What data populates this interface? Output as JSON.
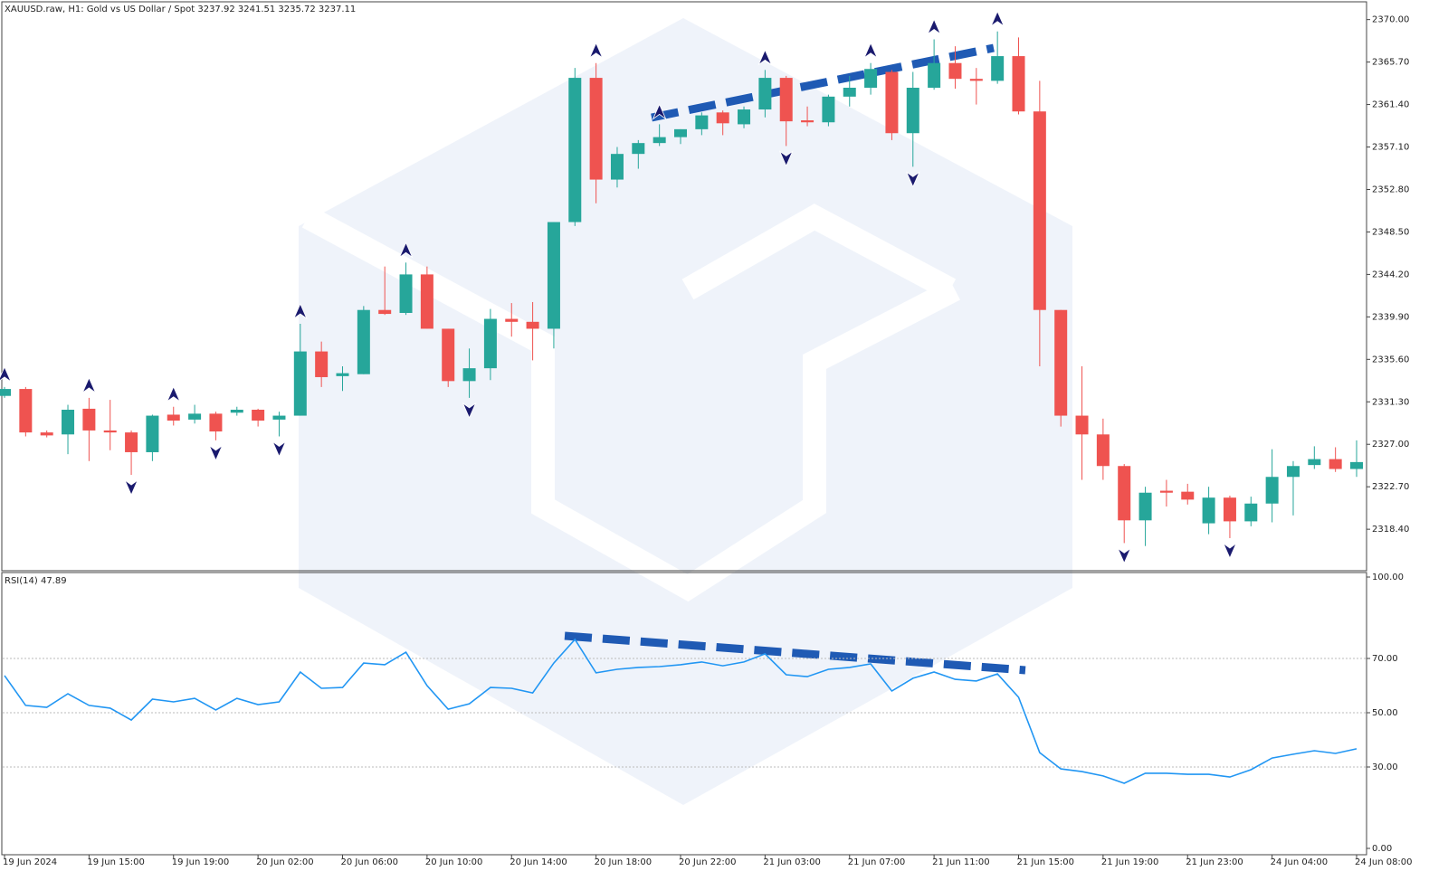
{
  "chart_data": {
    "type": "candlestick",
    "title": "XAUUSD.raw, H1:  Gold vs US Dollar / Spot  3237.92 3241.51 3235.72 3237.11",
    "categories": [
      "19 Jun 2024",
      null,
      null,
      null,
      "19 Jun 15:00",
      null,
      null,
      null,
      "19 Jun 19:00",
      null,
      null,
      null,
      "20 Jun 02:00",
      null,
      null,
      null,
      "20 Jun 06:00",
      null,
      null,
      null,
      "20 Jun 10:00",
      null,
      null,
      null,
      "20 Jun 14:00",
      null,
      null,
      null,
      "20 Jun 18:00",
      null,
      null,
      null,
      "20 Jun 22:00",
      null,
      null,
      null,
      "21 Jun 03:00",
      null,
      null,
      null,
      "21 Jun 07:00",
      null,
      null,
      null,
      "21 Jun 11:00",
      null,
      null,
      null,
      "21 Jun 15:00",
      null,
      null,
      null,
      "21 Jun 19:00",
      null,
      null,
      null,
      "21 Jun 23:00",
      null,
      null,
      null,
      "24 Jun 04:00",
      null,
      null,
      null,
      "24 Jun 08:00"
    ],
    "open": [
      2331.9,
      2332.6,
      2328.2,
      2328.0,
      2330.6,
      2328.4,
      2328.2,
      2326.2,
      2330.0,
      2329.5,
      2330.1,
      2330.2,
      2330.5,
      2329.5,
      2329.9,
      2336.4,
      2333.9,
      2334.1,
      2340.6,
      2340.3,
      2344.2,
      2338.7,
      2333.4,
      2334.7,
      2339.7,
      2339.4,
      2338.7,
      2349.5,
      2364.1,
      2353.8,
      2356.4,
      2357.5,
      2358.1,
      2358.9,
      2360.6,
      2359.4,
      2360.9,
      2364.1,
      2359.8,
      2359.6,
      2362.2,
      2363.1,
      2364.7,
      2358.5,
      2363.1,
      2365.6,
      2364.0,
      2363.8,
      2366.3,
      2360.7,
      2340.6,
      2329.9,
      2328.0,
      2324.8,
      2319.3,
      2322.3,
      2322.2,
      2319.0,
      2321.6,
      2319.2,
      2321.0,
      2323.7,
      2324.9,
      2325.5,
      2324.5
    ],
    "high": [
      2332.8,
      2332.8,
      2328.4,
      2331.0,
      2331.7,
      2331.5,
      2328.4,
      2330.0,
      2330.8,
      2331.0,
      2330.3,
      2330.8,
      2330.6,
      2330.3,
      2339.2,
      2337.4,
      2334.9,
      2341.0,
      2345.0,
      2345.4,
      2345.0,
      2338.7,
      2336.7,
      2340.7,
      2341.3,
      2341.4,
      2349.5,
      2365.1,
      2365.6,
      2357.1,
      2357.8,
      2359.4,
      2358.9,
      2360.6,
      2360.8,
      2361.2,
      2364.9,
      2364.3,
      2361.2,
      2362.4,
      2364.3,
      2365.6,
      2364.9,
      2364.7,
      2368.0,
      2367.3,
      2365.1,
      2368.8,
      2368.2,
      2363.8,
      2340.6,
      2334.9,
      2329.6,
      2325.0,
      2322.7,
      2323.4,
      2323.0,
      2322.7,
      2321.8,
      2321.7,
      2326.5,
      2325.3,
      2326.8,
      2326.7,
      2327.4
    ],
    "low": [
      2331.7,
      2327.8,
      2327.7,
      2326.0,
      2325.3,
      2326.4,
      2323.9,
      2325.3,
      2328.9,
      2329.1,
      2327.4,
      2329.9,
      2328.8,
      2327.8,
      2329.9,
      2332.8,
      2332.4,
      2334.1,
      2340.1,
      2340.1,
      2338.7,
      2332.8,
      2331.7,
      2333.5,
      2337.9,
      2335.5,
      2336.7,
      2349.1,
      2351.4,
      2353.0,
      2354.9,
      2357.2,
      2357.4,
      2358.3,
      2358.3,
      2359.0,
      2360.1,
      2357.2,
      2359.2,
      2359.2,
      2361.2,
      2362.4,
      2357.8,
      2355.1,
      2362.9,
      2363.0,
      2361.4,
      2363.5,
      2360.4,
      2334.9,
      2328.8,
      2323.4,
      2323.4,
      2317.0,
      2316.7,
      2320.7,
      2320.9,
      2317.9,
      2317.5,
      2318.7,
      2319.1,
      2319.8,
      2324.5,
      2324.2,
      2323.7
    ],
    "close": [
      2332.6,
      2328.2,
      2327.9,
      2330.5,
      2328.4,
      2328.2,
      2326.2,
      2329.9,
      2329.4,
      2330.1,
      2328.3,
      2330.5,
      2329.4,
      2329.9,
      2336.4,
      2333.8,
      2334.2,
      2340.6,
      2340.2,
      2344.2,
      2338.7,
      2333.4,
      2334.7,
      2339.7,
      2339.4,
      2338.7,
      2349.5,
      2364.1,
      2353.8,
      2356.4,
      2357.5,
      2358.1,
      2358.9,
      2360.3,
      2359.5,
      2360.9,
      2364.1,
      2359.7,
      2359.6,
      2362.2,
      2363.1,
      2365.0,
      2358.5,
      2363.1,
      2365.6,
      2364.0,
      2363.8,
      2366.3,
      2360.7,
      2340.6,
      2329.9,
      2328.0,
      2324.8,
      2319.3,
      2322.1,
      2322.1,
      2321.4,
      2321.6,
      2319.2,
      2321.0,
      2323.7,
      2324.8,
      2325.5,
      2324.5,
      2325.2
    ],
    "up_color": "#26a69a",
    "down_color": "#ef5350",
    "fractals_up": [
      0,
      4,
      8,
      14,
      19,
      28,
      31,
      36,
      41,
      44,
      47
    ],
    "fractals_down": [
      6,
      10,
      13,
      22,
      37,
      43,
      53,
      58
    ],
    "ylim": [
      2314.2,
      2371.8
    ],
    "yticks": [
      {
        "value": 2370.0,
        "label": "2370.00"
      },
      {
        "value": 2365.7,
        "label": "2365.70"
      },
      {
        "value": 2361.4,
        "label": "2361.40"
      },
      {
        "value": 2357.1,
        "label": "2357.10"
      },
      {
        "value": 2352.8,
        "label": "2352.80"
      },
      {
        "value": 2348.5,
        "label": "2348.50"
      },
      {
        "value": 2344.2,
        "label": "2344.20"
      },
      {
        "value": 2339.9,
        "label": "2339.90"
      },
      {
        "value": 2335.6,
        "label": "2335.60"
      },
      {
        "value": 2331.3,
        "label": "2331.30"
      },
      {
        "value": 2327.0,
        "label": "2327.00"
      },
      {
        "value": 2322.7,
        "label": "2322.70"
      },
      {
        "value": 2318.4,
        "label": "2318.40"
      }
    ],
    "indicator": {
      "type": "line",
      "title": "RSI(14) 47.89",
      "color": "#2196f3",
      "values": [
        63.7,
        52.7,
        52.0,
        57.0,
        52.7,
        51.7,
        47.3,
        55.0,
        54.0,
        55.3,
        51.0,
        55.3,
        53.0,
        54.0,
        65.0,
        59.0,
        59.3,
        68.3,
        67.7,
        72.3,
        60.0,
        51.3,
        53.3,
        59.3,
        59.0,
        57.3,
        68.3,
        77.0,
        64.7,
        66.0,
        66.7,
        67.0,
        67.7,
        68.7,
        67.3,
        68.7,
        71.7,
        64.0,
        63.3,
        66.0,
        66.7,
        68.0,
        58.0,
        62.7,
        65.0,
        62.3,
        61.7,
        64.3,
        55.7,
        35.3,
        29.3,
        28.3,
        26.7,
        24.0,
        27.7,
        27.7,
        27.3,
        27.3,
        26.3,
        29.0,
        33.3,
        34.7,
        36.0,
        35.0,
        36.7
      ],
      "ylim": [
        0,
        100
      ],
      "yticks": [
        {
          "value": 100,
          "label": "100.00"
        },
        {
          "value": 70,
          "label": "70.00"
        },
        {
          "value": 50,
          "label": "50.00"
        },
        {
          "value": 30,
          "label": "30.00"
        },
        {
          "value": 0,
          "label": "0.00"
        }
      ],
      "grid_values": [
        70,
        50,
        30
      ]
    }
  }
}
